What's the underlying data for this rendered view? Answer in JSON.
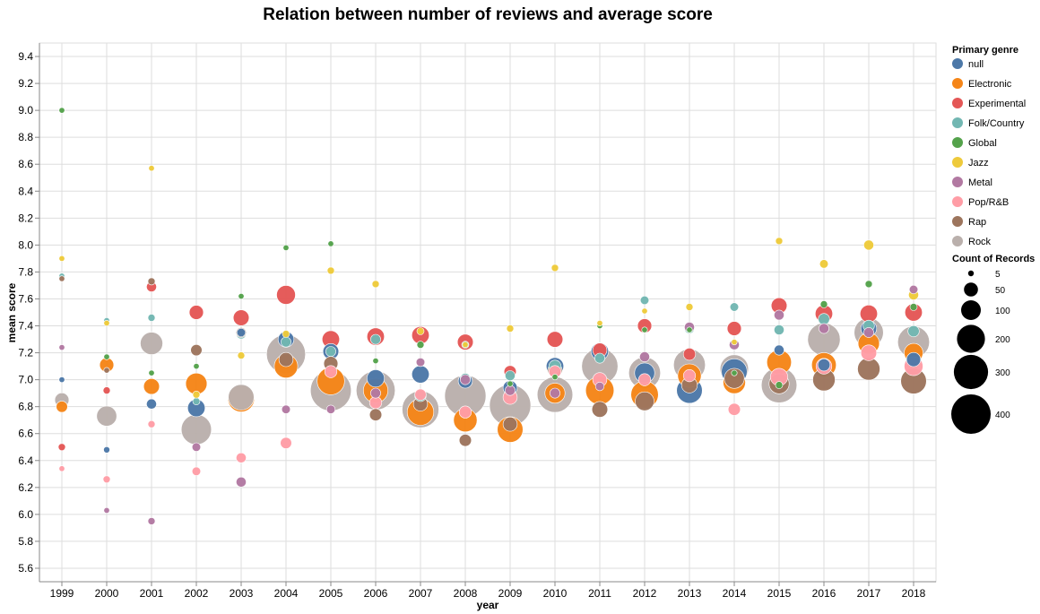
{
  "chart_data": {
    "type": "scatter",
    "title": "Relation between number of reviews and average score",
    "xlabel": "year",
    "ylabel": "mean score",
    "ylim": [
      5.5,
      9.5
    ],
    "y_ticks": [
      "5.6",
      "5.8",
      "6.0",
      "6.2",
      "6.4",
      "6.6",
      "6.8",
      "7.0",
      "7.2",
      "7.4",
      "7.6",
      "7.8",
      "8.0",
      "8.2",
      "8.4",
      "8.6",
      "8.8",
      "9.0",
      "9.2",
      "9.4"
    ],
    "categories": [
      "1999",
      "2000",
      "2001",
      "2002",
      "2003",
      "2004",
      "2005",
      "2006",
      "2007",
      "2008",
      "2009",
      "2010",
      "2011",
      "2012",
      "2013",
      "2014",
      "2015",
      "2016",
      "2017",
      "2018"
    ],
    "grid": true,
    "legend_position": "right",
    "legend_title": "Primary genre",
    "size_legend_title": "Count of Records",
    "size_legend_values": [
      "5",
      "50",
      "100",
      "200",
      "300",
      "400"
    ],
    "genres": [
      "null",
      "Electronic",
      "Experimental",
      "Folk/Country",
      "Global",
      "Jazz",
      "Metal",
      "Pop/R&B",
      "Rap",
      "Rock"
    ],
    "colors": {
      "null": "#4c78a8",
      "Electronic": "#f58518",
      "Experimental": "#e45756",
      "Folk/Country": "#72b7b2",
      "Global": "#54a24b",
      "Jazz": "#eeca3b",
      "Metal": "#b279a2",
      "Pop/R&B": "#ff9da6",
      "Rap": "#9d755d",
      "Rock": "#bab0ac"
    },
    "series": [
      {
        "name": "null",
        "values": [
          [
            1999,
            7.0,
            5
          ],
          [
            2000,
            6.48,
            8
          ],
          [
            2001,
            6.82,
            20
          ],
          [
            2002,
            6.79,
            60
          ],
          [
            2003,
            7.35,
            15
          ],
          [
            2004,
            7.3,
            50
          ],
          [
            2005,
            7.21,
            50
          ],
          [
            2006,
            7.01,
            60
          ],
          [
            2007,
            7.04,
            60
          ],
          [
            2008,
            6.99,
            40
          ],
          [
            2009,
            6.94,
            40
          ],
          [
            2010,
            7.1,
            60
          ],
          [
            2011,
            7.21,
            60
          ],
          [
            2012,
            7.05,
            80
          ],
          [
            2013,
            6.92,
            130
          ],
          [
            2014,
            7.06,
            130
          ],
          [
            2015,
            7.22,
            20
          ],
          [
            2016,
            7.11,
            30
          ],
          [
            2017,
            7.38,
            50
          ],
          [
            2018,
            7.15,
            40
          ]
        ]
      },
      {
        "name": "Electronic",
        "values": [
          [
            1999,
            6.8,
            25
          ],
          [
            2000,
            7.11,
            40
          ],
          [
            2001,
            6.95,
            50
          ],
          [
            2002,
            6.97,
            90
          ],
          [
            2003,
            6.86,
            140
          ],
          [
            2004,
            7.1,
            110
          ],
          [
            2005,
            6.99,
            150
          ],
          [
            2006,
            6.92,
            120
          ],
          [
            2007,
            6.76,
            140
          ],
          [
            2008,
            6.7,
            110
          ],
          [
            2009,
            6.63,
            130
          ],
          [
            2010,
            6.9,
            80
          ],
          [
            2011,
            6.92,
            160
          ],
          [
            2012,
            6.89,
            150
          ],
          [
            2013,
            7.03,
            110
          ],
          [
            2014,
            6.98,
            100
          ],
          [
            2015,
            7.13,
            120
          ],
          [
            2016,
            7.11,
            120
          ],
          [
            2017,
            7.27,
            90
          ],
          [
            2018,
            7.2,
            70
          ]
        ]
      },
      {
        "name": "Experimental",
        "values": [
          [
            1999,
            6.5,
            10
          ],
          [
            2000,
            6.92,
            10
          ],
          [
            2001,
            7.69,
            20
          ],
          [
            2002,
            7.5,
            40
          ],
          [
            2003,
            7.46,
            50
          ],
          [
            2004,
            7.63,
            70
          ],
          [
            2005,
            7.3,
            60
          ],
          [
            2006,
            7.32,
            60
          ],
          [
            2007,
            7.33,
            60
          ],
          [
            2008,
            7.28,
            50
          ],
          [
            2009,
            7.06,
            30
          ],
          [
            2010,
            7.3,
            50
          ],
          [
            2011,
            7.22,
            40
          ],
          [
            2012,
            7.4,
            40
          ],
          [
            2013,
            7.19,
            30
          ],
          [
            2014,
            7.38,
            40
          ],
          [
            2015,
            7.55,
            50
          ],
          [
            2016,
            7.49,
            60
          ],
          [
            2017,
            7.49,
            60
          ],
          [
            2018,
            7.5,
            60
          ]
        ]
      },
      {
        "name": "Folk/Country",
        "values": [
          [
            1999,
            7.77,
            5
          ],
          [
            2000,
            7.44,
            5
          ],
          [
            2001,
            7.46,
            10
          ],
          [
            2002,
            6.84,
            10
          ],
          [
            2003,
            7.34,
            20
          ],
          [
            2004,
            7.28,
            20
          ],
          [
            2005,
            7.21,
            20
          ],
          [
            2006,
            7.3,
            20
          ],
          [
            2007,
            6.88,
            25
          ],
          [
            2008,
            7.01,
            20
          ],
          [
            2009,
            7.03,
            20
          ],
          [
            2010,
            7.1,
            30
          ],
          [
            2011,
            7.16,
            20
          ],
          [
            2012,
            7.59,
            15
          ],
          [
            2013,
            7.38,
            20
          ],
          [
            2014,
            7.54,
            15
          ],
          [
            2015,
            7.37,
            20
          ],
          [
            2016,
            7.45,
            25
          ],
          [
            2017,
            7.4,
            25
          ],
          [
            2018,
            7.36,
            25
          ]
        ]
      },
      {
        "name": "Global",
        "values": [
          [
            1999,
            9.0,
            5
          ],
          [
            2000,
            7.17,
            5
          ],
          [
            2001,
            7.05,
            5
          ],
          [
            2002,
            7.1,
            5
          ],
          [
            2003,
            7.62,
            5
          ],
          [
            2004,
            7.98,
            5
          ],
          [
            2005,
            8.01,
            5
          ],
          [
            2006,
            7.14,
            5
          ],
          [
            2007,
            7.26,
            10
          ],
          [
            2008,
            7.26,
            10
          ],
          [
            2009,
            6.97,
            5
          ],
          [
            2010,
            7.02,
            5
          ],
          [
            2011,
            7.4,
            5
          ],
          [
            2012,
            7.37,
            5
          ],
          [
            2013,
            7.37,
            5
          ],
          [
            2014,
            7.05,
            5
          ],
          [
            2015,
            6.96,
            10
          ],
          [
            2016,
            7.56,
            10
          ],
          [
            2017,
            7.71,
            10
          ],
          [
            2018,
            7.54,
            10
          ]
        ]
      },
      {
        "name": "Jazz",
        "values": [
          [
            1999,
            7.9,
            5
          ],
          [
            2000,
            7.42,
            5
          ],
          [
            2001,
            8.57,
            5
          ],
          [
            2002,
            6.89,
            10
          ],
          [
            2003,
            7.18,
            10
          ],
          [
            2004,
            7.34,
            10
          ],
          [
            2005,
            7.81,
            10
          ],
          [
            2006,
            7.71,
            10
          ],
          [
            2007,
            7.36,
            10
          ],
          [
            2008,
            7.26,
            5
          ],
          [
            2009,
            7.38,
            10
          ],
          [
            2010,
            7.83,
            10
          ],
          [
            2011,
            7.42,
            5
          ],
          [
            2012,
            7.51,
            5
          ],
          [
            2013,
            7.54,
            10
          ],
          [
            2014,
            7.28,
            5
          ],
          [
            2015,
            8.03,
            10
          ],
          [
            2016,
            7.86,
            15
          ],
          [
            2017,
            8.0,
            20
          ],
          [
            2018,
            7.63,
            20
          ]
        ]
      },
      {
        "name": "Metal",
        "values": [
          [
            1999,
            7.24,
            5
          ],
          [
            2000,
            6.03,
            5
          ],
          [
            2001,
            5.95,
            10
          ],
          [
            2002,
            6.5,
            15
          ],
          [
            2003,
            6.24,
            20
          ],
          [
            2004,
            6.78,
            15
          ],
          [
            2005,
            6.78,
            15
          ],
          [
            2006,
            6.9,
            20
          ],
          [
            2007,
            7.13,
            15
          ],
          [
            2008,
            7.0,
            20
          ],
          [
            2009,
            6.92,
            20
          ],
          [
            2010,
            6.9,
            20
          ],
          [
            2011,
            6.95,
            15
          ],
          [
            2012,
            7.17,
            20
          ],
          [
            2013,
            7.39,
            20
          ],
          [
            2014,
            7.26,
            20
          ],
          [
            2015,
            7.48,
            20
          ],
          [
            2016,
            7.38,
            20
          ],
          [
            2017,
            7.35,
            20
          ],
          [
            2018,
            7.67,
            15
          ]
        ]
      },
      {
        "name": "Pop/R&B",
        "values": [
          [
            1999,
            6.34,
            5
          ],
          [
            2000,
            6.26,
            10
          ],
          [
            2001,
            6.67,
            10
          ],
          [
            2002,
            6.32,
            15
          ],
          [
            2003,
            6.42,
            20
          ],
          [
            2004,
            6.53,
            25
          ],
          [
            2005,
            7.06,
            30
          ],
          [
            2006,
            6.83,
            30
          ],
          [
            2007,
            6.89,
            25
          ],
          [
            2008,
            6.76,
            30
          ],
          [
            2009,
            6.87,
            40
          ],
          [
            2010,
            7.06,
            30
          ],
          [
            2011,
            7.0,
            40
          ],
          [
            2012,
            7.0,
            30
          ],
          [
            2013,
            7.03,
            30
          ],
          [
            2014,
            6.78,
            30
          ],
          [
            2015,
            7.02,
            60
          ],
          [
            2016,
            7.1,
            50
          ],
          [
            2017,
            7.2,
            50
          ],
          [
            2018,
            7.1,
            70
          ]
        ]
      },
      {
        "name": "Rap",
        "values": [
          [
            1999,
            7.75,
            5
          ],
          [
            2000,
            7.07,
            5
          ],
          [
            2001,
            7.73,
            10
          ],
          [
            2002,
            7.22,
            25
          ],
          [
            2003,
            7.35,
            20
          ],
          [
            2004,
            7.15,
            40
          ],
          [
            2005,
            7.12,
            40
          ],
          [
            2006,
            6.74,
            30
          ],
          [
            2007,
            6.82,
            40
          ],
          [
            2008,
            6.55,
            30
          ],
          [
            2009,
            6.67,
            40
          ],
          [
            2010,
            7.07,
            40
          ],
          [
            2011,
            6.78,
            50
          ],
          [
            2012,
            6.84,
            70
          ],
          [
            2013,
            6.96,
            50
          ],
          [
            2014,
            7.01,
            80
          ],
          [
            2015,
            6.97,
            80
          ],
          [
            2016,
            7.0,
            100
          ],
          [
            2017,
            7.08,
            100
          ],
          [
            2018,
            6.99,
            130
          ]
        ]
      },
      {
        "name": "Rock",
        "values": [
          [
            1999,
            6.85,
            40
          ],
          [
            2000,
            6.73,
            80
          ],
          [
            2001,
            7.27,
            100
          ],
          [
            2002,
            6.63,
            180
          ],
          [
            2003,
            6.87,
            130
          ],
          [
            2004,
            7.19,
            300
          ],
          [
            2005,
            6.92,
            330
          ],
          [
            2006,
            6.92,
            300
          ],
          [
            2007,
            6.78,
            270
          ],
          [
            2008,
            6.88,
            340
          ],
          [
            2009,
            6.81,
            340
          ],
          [
            2010,
            6.89,
            250
          ],
          [
            2011,
            7.1,
            260
          ],
          [
            2012,
            7.05,
            200
          ],
          [
            2013,
            7.11,
            200
          ],
          [
            2014,
            7.08,
            160
          ],
          [
            2015,
            6.96,
            250
          ],
          [
            2016,
            7.3,
            210
          ],
          [
            2017,
            7.35,
            170
          ],
          [
            2018,
            7.28,
            200
          ]
        ]
      }
    ]
  }
}
